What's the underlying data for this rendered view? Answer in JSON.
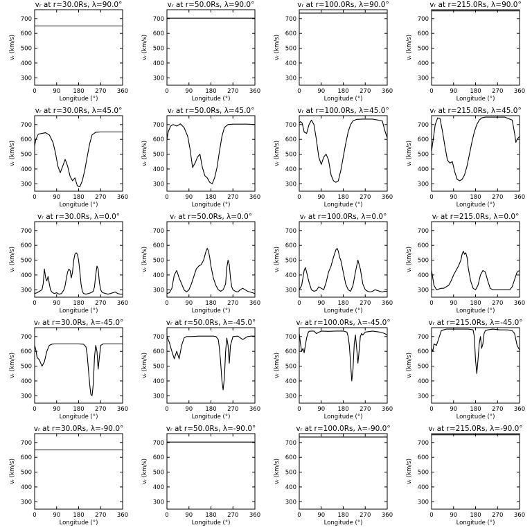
{
  "figure": {
    "ylabel": "vᵣ (km/s)",
    "xlabel": "Longitude (°)",
    "x_ticks": [
      "0",
      "90",
      "180",
      "270",
      "360"
    ],
    "y_ticks": [
      "300",
      "400",
      "500",
      "600",
      "700"
    ],
    "colors": {
      "line": "#000000",
      "background": "#ffffff"
    }
  },
  "chart_data": [
    {
      "type": "line",
      "title": "vᵣ at r=30.0Rs, λ=90.0°",
      "xlabel": "Longitude (°)",
      "ylabel": "vᵣ (km/s)",
      "xlim": [
        0,
        360
      ],
      "ylim": [
        250,
        760
      ],
      "x": [
        0,
        360
      ],
      "y": [
        650,
        650
      ]
    },
    {
      "type": "line",
      "title": "vᵣ at r=50.0Rs, λ=90.0°",
      "xlabel": "Longitude (°)",
      "ylabel": "vᵣ (km/s)",
      "xlim": [
        0,
        360
      ],
      "ylim": [
        250,
        760
      ],
      "x": [
        0,
        360
      ],
      "y": [
        703,
        703
      ]
    },
    {
      "type": "line",
      "title": "vᵣ at r=100.0Rs, λ=90.0°",
      "xlabel": "Longitude (°)",
      "ylabel": "vᵣ (km/s)",
      "xlim": [
        0,
        360
      ],
      "ylim": [
        250,
        760
      ],
      "x": [
        0,
        360
      ],
      "y": [
        737,
        737
      ]
    },
    {
      "type": "line",
      "title": "vᵣ at r=215.0Rs, λ=90.0°",
      "xlabel": "Longitude (°)",
      "ylabel": "vᵣ (km/s)",
      "xlim": [
        0,
        360
      ],
      "ylim": [
        250,
        760
      ],
      "x": [
        0,
        360
      ],
      "y": [
        752,
        752
      ]
    },
    {
      "type": "line",
      "title": "vᵣ at r=30.0Rs, λ=45.0°",
      "xlabel": "Longitude (°)",
      "ylabel": "vᵣ (km/s)",
      "xlim": [
        0,
        360
      ],
      "ylim": [
        250,
        760
      ],
      "x": [
        0,
        5,
        15,
        30,
        45,
        60,
        75,
        85,
        95,
        105,
        115,
        125,
        135,
        145,
        155,
        165,
        175,
        185,
        195,
        205,
        215,
        225,
        235,
        250,
        270,
        300,
        330,
        360
      ],
      "y": [
        555,
        600,
        635,
        640,
        645,
        630,
        580,
        510,
        420,
        375,
        420,
        465,
        420,
        350,
        320,
        340,
        285,
        280,
        320,
        390,
        480,
        570,
        630,
        648,
        650,
        650,
        650,
        650
      ]
    },
    {
      "type": "line",
      "title": "vᵣ at r=50.0Rs, λ=45.0°",
      "xlabel": "Longitude (°)",
      "ylabel": "vᵣ (km/s)",
      "xlim": [
        0,
        360
      ],
      "ylim": [
        250,
        760
      ],
      "x": [
        0,
        5,
        15,
        25,
        40,
        55,
        70,
        85,
        95,
        105,
        115,
        125,
        135,
        145,
        155,
        165,
        175,
        185,
        195,
        205,
        215,
        225,
        235,
        250,
        270,
        300,
        330,
        360
      ],
      "y": [
        600,
        650,
        690,
        700,
        690,
        705,
        680,
        620,
        530,
        410,
        440,
        480,
        500,
        410,
        355,
        340,
        310,
        300,
        340,
        410,
        520,
        620,
        680,
        700,
        703,
        703,
        703,
        700
      ]
    },
    {
      "type": "line",
      "title": "vᵣ at r=100.0Rs, λ=45.0°",
      "xlabel": "Longitude (°)",
      "ylabel": "vᵣ (km/s)",
      "xlim": [
        0,
        360
      ],
      "ylim": [
        250,
        760
      ],
      "x": [
        0,
        5,
        12,
        20,
        30,
        40,
        50,
        60,
        70,
        80,
        90,
        100,
        110,
        120,
        130,
        140,
        150,
        160,
        170,
        180,
        190,
        200,
        210,
        220,
        235,
        260,
        300,
        340,
        350,
        360
      ],
      "y": [
        710,
        720,
        710,
        650,
        640,
        700,
        730,
        700,
        600,
        480,
        430,
        480,
        500,
        460,
        360,
        320,
        310,
        320,
        390,
        480,
        570,
        650,
        700,
        725,
        735,
        737,
        737,
        725,
        660,
        610
      ]
    },
    {
      "type": "line",
      "title": "vᵣ at r=215.0Rs, λ=45.0°",
      "xlabel": "Longitude (°)",
      "ylabel": "vᵣ (km/s)",
      "xlim": [
        0,
        360
      ],
      "ylim": [
        250,
        760
      ],
      "x": [
        0,
        5,
        15,
        25,
        35,
        45,
        55,
        65,
        75,
        85,
        95,
        105,
        115,
        125,
        135,
        145,
        155,
        165,
        175,
        185,
        195,
        205,
        220,
        240,
        270,
        300,
        330,
        340,
        345,
        350,
        360
      ],
      "y": [
        520,
        580,
        700,
        745,
        740,
        650,
        550,
        460,
        440,
        450,
        380,
        330,
        320,
        330,
        360,
        420,
        500,
        580,
        650,
        700,
        730,
        745,
        750,
        750,
        750,
        750,
        730,
        640,
        580,
        600,
        620
      ]
    },
    {
      "type": "line",
      "title": "vᵣ at r=30.0Rs, λ=0.0°",
      "xlabel": "Longitude (°)",
      "ylabel": "vᵣ (km/s)",
      "xlim": [
        0,
        360
      ],
      "ylim": [
        250,
        760
      ],
      "x": [
        0,
        10,
        20,
        30,
        35,
        40,
        45,
        50,
        55,
        60,
        65,
        70,
        80,
        90,
        100,
        110,
        120,
        125,
        130,
        135,
        140,
        145,
        150,
        155,
        160,
        165,
        170,
        175,
        180,
        185,
        190,
        195,
        200,
        210,
        220,
        230,
        240,
        245,
        250,
        255,
        260,
        265,
        270,
        275,
        280,
        290,
        300,
        310,
        320,
        330,
        340,
        350,
        360
      ],
      "y": [
        275,
        280,
        290,
        300,
        340,
        440,
        380,
        360,
        390,
        340,
        300,
        285,
        275,
        280,
        270,
        275,
        300,
        330,
        380,
        420,
        440,
        430,
        380,
        420,
        500,
        540,
        550,
        540,
        500,
        420,
        340,
        290,
        275,
        270,
        275,
        280,
        290,
        320,
        400,
        460,
        440,
        350,
        300,
        285,
        280,
        275,
        270,
        275,
        280,
        285,
        275,
        270,
        270
      ]
    },
    {
      "type": "line",
      "title": "vᵣ at r=50.0Rs, λ=0.0°",
      "xlabel": "Longitude (°)",
      "ylabel": "vᵣ (km/s)",
      "xlim": [
        0,
        360
      ],
      "ylim": [
        250,
        760
      ],
      "x": [
        0,
        10,
        20,
        30,
        40,
        50,
        60,
        70,
        80,
        90,
        100,
        110,
        120,
        130,
        140,
        150,
        160,
        165,
        170,
        175,
        180,
        190,
        200,
        210,
        220,
        230,
        240,
        245,
        250,
        255,
        260,
        265,
        270,
        280,
        290,
        300,
        310,
        320,
        330,
        340,
        350,
        360
      ],
      "y": [
        275,
        280,
        310,
        400,
        430,
        380,
        340,
        300,
        285,
        300,
        340,
        390,
        440,
        460,
        470,
        500,
        560,
        580,
        560,
        520,
        460,
        380,
        330,
        300,
        290,
        300,
        340,
        450,
        500,
        470,
        380,
        320,
        300,
        290,
        285,
        300,
        310,
        300,
        290,
        285,
        280,
        275
      ]
    },
    {
      "type": "line",
      "title": "vᵣ at r=100.0Rs, λ=0.0°",
      "xlabel": "Longitude (°)",
      "ylabel": "vᵣ (km/s)",
      "xlim": [
        0,
        360
      ],
      "ylim": [
        250,
        760
      ],
      "x": [
        0,
        10,
        20,
        25,
        30,
        40,
        50,
        60,
        70,
        80,
        90,
        100,
        110,
        120,
        130,
        140,
        150,
        155,
        160,
        165,
        170,
        180,
        190,
        200,
        210,
        220,
        230,
        240,
        250,
        260,
        270,
        280,
        290,
        300,
        310,
        320,
        330,
        340,
        350,
        360
      ],
      "y": [
        300,
        330,
        430,
        450,
        420,
        350,
        300,
        290,
        295,
        320,
        310,
        300,
        350,
        420,
        460,
        520,
        570,
        580,
        560,
        520,
        500,
        420,
        340,
        300,
        290,
        330,
        420,
        500,
        440,
        340,
        300,
        290,
        285,
        290,
        300,
        295,
        290,
        285,
        290,
        290
      ]
    },
    {
      "type": "line",
      "title": "vᵣ at r=215.0Rs, λ=0.0°",
      "xlabel": "Longitude (°)",
      "ylabel": "vᵣ (km/s)",
      "xlim": [
        0,
        360
      ],
      "ylim": [
        250,
        760
      ],
      "x": [
        0,
        10,
        20,
        30,
        40,
        50,
        60,
        70,
        80,
        90,
        100,
        110,
        120,
        125,
        130,
        135,
        140,
        145,
        150,
        160,
        170,
        180,
        190,
        200,
        210,
        220,
        230,
        240,
        250,
        260,
        270,
        280,
        290,
        300,
        310,
        320,
        330,
        340,
        350,
        360
      ],
      "y": [
        430,
        330,
        300,
        305,
        310,
        310,
        320,
        330,
        360,
        400,
        430,
        460,
        500,
        540,
        560,
        540,
        550,
        520,
        450,
        360,
        310,
        300,
        330,
        400,
        430,
        420,
        360,
        310,
        300,
        300,
        300,
        300,
        300,
        300,
        300,
        300,
        320,
        370,
        420,
        430
      ]
    },
    {
      "type": "line",
      "title": "vᵣ at r=30.0Rs, λ=-45.0°",
      "xlabel": "Longitude (°)",
      "ylabel": "vᵣ (km/s)",
      "xlim": [
        0,
        360
      ],
      "ylim": [
        250,
        760
      ],
      "x": [
        0,
        5,
        10,
        20,
        30,
        40,
        50,
        60,
        70,
        80,
        100,
        130,
        160,
        180,
        200,
        210,
        215,
        220,
        225,
        230,
        235,
        240,
        245,
        250,
        255,
        260,
        265,
        270,
        280,
        300,
        330,
        345,
        360
      ],
      "y": [
        640,
        610,
        560,
        540,
        500,
        530,
        600,
        640,
        648,
        650,
        650,
        650,
        650,
        650,
        648,
        630,
        580,
        480,
        380,
        310,
        300,
        380,
        560,
        640,
        600,
        480,
        560,
        640,
        650,
        650,
        650,
        650,
        650
      ]
    },
    {
      "type": "line",
      "title": "vᵣ at r=50.0Rs, λ=-45.0°",
      "xlabel": "Longitude (°)",
      "ylabel": "vᵣ (km/s)",
      "xlim": [
        0,
        360
      ],
      "ylim": [
        250,
        760
      ],
      "x": [
        0,
        10,
        20,
        30,
        40,
        50,
        60,
        70,
        80,
        100,
        130,
        160,
        190,
        200,
        210,
        215,
        220,
        225,
        230,
        235,
        240,
        245,
        250,
        255,
        260,
        270,
        290,
        310,
        330,
        345,
        360
      ],
      "y": [
        700,
        660,
        600,
        550,
        600,
        550,
        640,
        690,
        700,
        700,
        703,
        703,
        703,
        700,
        680,
        620,
        520,
        400,
        340,
        420,
        600,
        690,
        640,
        520,
        640,
        700,
        703,
        680,
        700,
        703,
        703
      ]
    },
    {
      "type": "line",
      "title": "vᵣ at r=100.0Rs, λ=-45.0°",
      "xlabel": "Longitude (°)",
      "ylabel": "vᵣ (km/s)",
      "xlim": [
        0,
        360
      ],
      "ylim": [
        250,
        760
      ],
      "x": [
        0,
        5,
        10,
        15,
        20,
        25,
        30,
        35,
        40,
        50,
        60,
        70,
        90,
        120,
        150,
        180,
        195,
        200,
        205,
        210,
        215,
        220,
        225,
        230,
        235,
        240,
        245,
        250,
        255,
        260,
        270,
        300,
        330,
        350,
        360
      ],
      "y": [
        720,
        650,
        600,
        620,
        590,
        640,
        690,
        720,
        735,
        737,
        737,
        720,
        737,
        735,
        737,
        737,
        730,
        700,
        640,
        520,
        400,
        480,
        650,
        710,
        620,
        520,
        600,
        700,
        720,
        710,
        730,
        737,
        730,
        720,
        710
      ]
    },
    {
      "type": "line",
      "title": "vᵣ at r=215.0Rs, λ=-45.0°",
      "xlabel": "Longitude (°)",
      "ylabel": "vᵣ (km/s)",
      "xlim": [
        0,
        360
      ],
      "ylim": [
        250,
        760
      ],
      "x": [
        0,
        5,
        10,
        20,
        30,
        40,
        50,
        60,
        90,
        120,
        150,
        170,
        175,
        180,
        185,
        190,
        195,
        200,
        205,
        210,
        215,
        220,
        230,
        250,
        280,
        310,
        330,
        340,
        345,
        350,
        360
      ],
      "y": [
        620,
        600,
        650,
        640,
        690,
        740,
        745,
        750,
        750,
        750,
        750,
        745,
        700,
        540,
        450,
        540,
        650,
        700,
        620,
        650,
        720,
        740,
        745,
        750,
        745,
        745,
        740,
        720,
        680,
        640,
        610
      ]
    },
    {
      "type": "line",
      "title": "vᵣ at r=30.0Rs, λ=-90.0°",
      "xlabel": "Longitude (°)",
      "ylabel": "vᵣ (km/s)",
      "xlim": [
        0,
        360
      ],
      "ylim": [
        250,
        760
      ],
      "x": [
        0,
        360
      ],
      "y": [
        650,
        650
      ]
    },
    {
      "type": "line",
      "title": "vᵣ at r=50.0Rs, λ=-90.0°",
      "xlabel": "Longitude (°)",
      "ylabel": "vᵣ (km/s)",
      "xlim": [
        0,
        360
      ],
      "ylim": [
        250,
        760
      ],
      "x": [
        0,
        360
      ],
      "y": [
        703,
        703
      ]
    },
    {
      "type": "line",
      "title": "vᵣ at r=100.0Rs, λ=-90.0°",
      "xlabel": "Longitude (°)",
      "ylabel": "vᵣ (km/s)",
      "xlim": [
        0,
        360
      ],
      "ylim": [
        250,
        760
      ],
      "x": [
        0,
        360
      ],
      "y": [
        737,
        737
      ]
    },
    {
      "type": "line",
      "title": "vᵣ at r=215.0Rs, λ=-90.0°",
      "xlabel": "Longitude (°)",
      "ylabel": "vᵣ (km/s)",
      "xlim": [
        0,
        360
      ],
      "ylim": [
        250,
        760
      ],
      "x": [
        0,
        360
      ],
      "y": [
        752,
        752
      ]
    }
  ]
}
